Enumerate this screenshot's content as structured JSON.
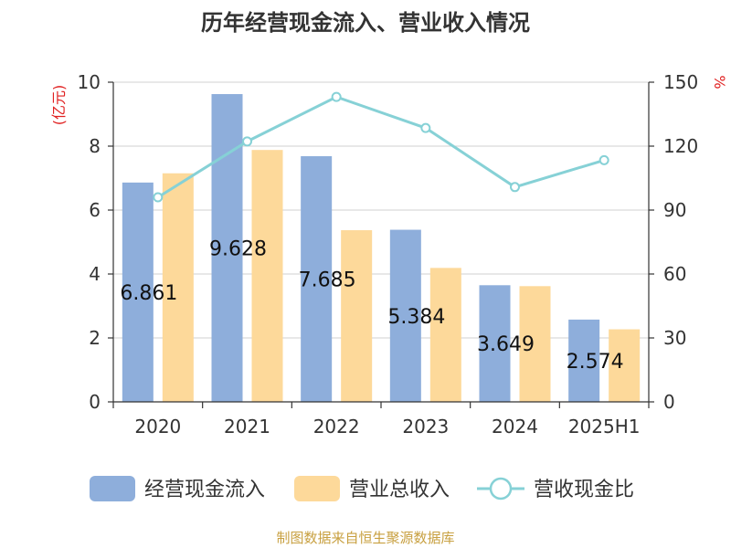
{
  "chart_data": {
    "type": "bar",
    "title": "历年经营现金流入、营业收入情况",
    "categories": [
      "2020",
      "2021",
      "2022",
      "2023",
      "2024",
      "2025H1"
    ],
    "series": [
      {
        "name": "经营现金流入",
        "type": "bar",
        "axis": "left",
        "color": "#8eaedb",
        "values": [
          6.861,
          9.628,
          7.685,
          5.384,
          3.649,
          2.574
        ],
        "labels": [
          "6.861",
          "9.628",
          "7.685",
          "5.384",
          "3.649",
          "2.574"
        ]
      },
      {
        "name": "营业总收入",
        "type": "bar",
        "axis": "left",
        "color": "#fdd99a",
        "values": [
          7.15,
          7.88,
          5.37,
          4.19,
          3.62,
          2.27
        ]
      },
      {
        "name": "营收现金比",
        "type": "line",
        "axis": "right",
        "color": "#86d1d6",
        "values": [
          96,
          122.2,
          143.1,
          128.5,
          100.8,
          113.4
        ]
      }
    ],
    "y_left": {
      "label": "(亿元)",
      "ylim": [
        0,
        10
      ],
      "ticks": [
        "0",
        "2",
        "4",
        "6",
        "8",
        "10"
      ],
      "label_color": "#e02020"
    },
    "y_right": {
      "label": "%",
      "ylim": [
        0,
        150
      ],
      "ticks": [
        "0",
        "30",
        "60",
        "90",
        "120",
        "150"
      ],
      "label_color": "#e02020"
    },
    "grid": true,
    "legend_position": "bottom"
  },
  "footer": {
    "source": "制图数据来自恒生聚源数据库",
    "color": "#c8a040"
  }
}
